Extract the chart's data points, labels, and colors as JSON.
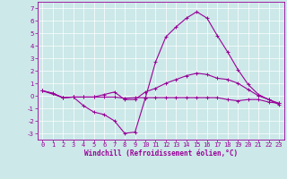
{
  "background_color": "#cce8e8",
  "grid_color": "#ffffff",
  "line_color": "#990099",
  "xlabel": "Windchill (Refroidissement éolien,°C)",
  "xlabel_fontsize": 5.5,
  "tick_fontsize": 5,
  "xlim": [
    -0.5,
    23.5
  ],
  "ylim": [
    -3.5,
    7.5
  ],
  "yticks": [
    -3,
    -2,
    -1,
    0,
    1,
    2,
    3,
    4,
    5,
    6,
    7
  ],
  "xticks": [
    0,
    1,
    2,
    3,
    4,
    5,
    6,
    7,
    8,
    9,
    10,
    11,
    12,
    13,
    14,
    15,
    16,
    17,
    18,
    19,
    20,
    21,
    22,
    23
  ],
  "series": [
    {
      "x": [
        0,
        1,
        2,
        3,
        4,
        5,
        6,
        7,
        8,
        9,
        10,
        11,
        12,
        13,
        14,
        15,
        16,
        17,
        18,
        19,
        20,
        21,
        22,
        23
      ],
      "y": [
        0.4,
        0.2,
        -0.15,
        -0.1,
        -0.1,
        -0.1,
        -0.1,
        -0.1,
        -0.2,
        -0.15,
        -0.15,
        -0.15,
        -0.15,
        -0.15,
        -0.15,
        -0.15,
        -0.15,
        -0.15,
        -0.3,
        -0.4,
        -0.3,
        -0.3,
        -0.5,
        -0.6
      ]
    },
    {
      "x": [
        0,
        1,
        2,
        3,
        4,
        5,
        6,
        7,
        8,
        9,
        10,
        11,
        12,
        13,
        14,
        15,
        16,
        17,
        18,
        19,
        20,
        21,
        22,
        23
      ],
      "y": [
        0.4,
        0.2,
        -0.15,
        -0.1,
        -0.1,
        -0.1,
        0.1,
        0.3,
        -0.3,
        -0.3,
        0.3,
        0.6,
        1.0,
        1.3,
        1.6,
        1.8,
        1.7,
        1.4,
        1.3,
        1.0,
        0.5,
        0.0,
        -0.3,
        -0.6
      ]
    },
    {
      "x": [
        0,
        2,
        3,
        4,
        5,
        6,
        7,
        8,
        9,
        10,
        11,
        12,
        13,
        14,
        15,
        16,
        17,
        18,
        19,
        20,
        21,
        22,
        23
      ],
      "y": [
        0.4,
        -0.15,
        -0.1,
        -0.8,
        -1.3,
        -1.5,
        -2.0,
        -3.0,
        -2.9,
        -0.2,
        2.7,
        4.7,
        5.5,
        6.2,
        6.7,
        6.2,
        4.8,
        3.5,
        2.1,
        0.9,
        0.1,
        -0.3,
        -0.7
      ]
    }
  ]
}
